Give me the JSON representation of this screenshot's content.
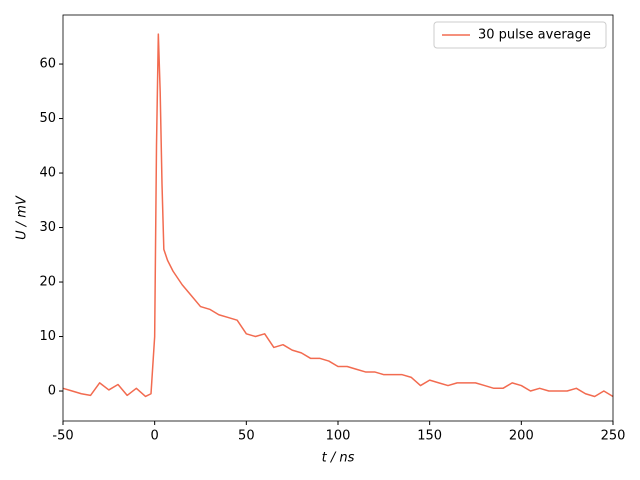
{
  "chart_data": {
    "type": "line",
    "xlabel": "t / ns",
    "ylabel": "U / mV",
    "x": [
      -50,
      -45,
      -40,
      -35,
      -30,
      -25,
      -20,
      -15,
      -10,
      -5,
      -2,
      0,
      1,
      2,
      3,
      4,
      5,
      7,
      10,
      15,
      20,
      25,
      30,
      35,
      40,
      45,
      50,
      55,
      60,
      65,
      70,
      75,
      80,
      85,
      90,
      95,
      100,
      105,
      110,
      115,
      120,
      125,
      130,
      135,
      140,
      145,
      150,
      155,
      160,
      165,
      170,
      175,
      180,
      185,
      190,
      195,
      200,
      205,
      210,
      215,
      220,
      225,
      230,
      235,
      240,
      245,
      250
    ],
    "series": [
      {
        "name": "30 pulse average",
        "color": "#f26b50",
        "values": [
          0.5,
          0,
          -0.5,
          -0.8,
          1.5,
          0.2,
          1.2,
          -0.8,
          0.5,
          -1,
          -0.5,
          10,
          45,
          65.5,
          55,
          38,
          26,
          24,
          22,
          19.5,
          17.5,
          15.5,
          15,
          14,
          13.5,
          13,
          10.5,
          10,
          10.5,
          8,
          8.5,
          7.5,
          7,
          6,
          6,
          5.5,
          4.5,
          4.5,
          4,
          3.5,
          3.5,
          3,
          3,
          3,
          2.5,
          1,
          2,
          1.5,
          1,
          1.5,
          1.5,
          1.5,
          1,
          0.5,
          0.5,
          1.5,
          1,
          0,
          0.5,
          0,
          0,
          0,
          0.5,
          -0.5,
          -1,
          0,
          -1
        ]
      }
    ],
    "xlim": [
      -50,
      250
    ],
    "xticks": [
      -50,
      0,
      50,
      100,
      150,
      200,
      250
    ],
    "ylim": [
      -5.5,
      69
    ],
    "yticks": [
      0,
      10,
      20,
      30,
      40,
      50,
      60
    ],
    "legend": "upper right",
    "grid": false
  }
}
